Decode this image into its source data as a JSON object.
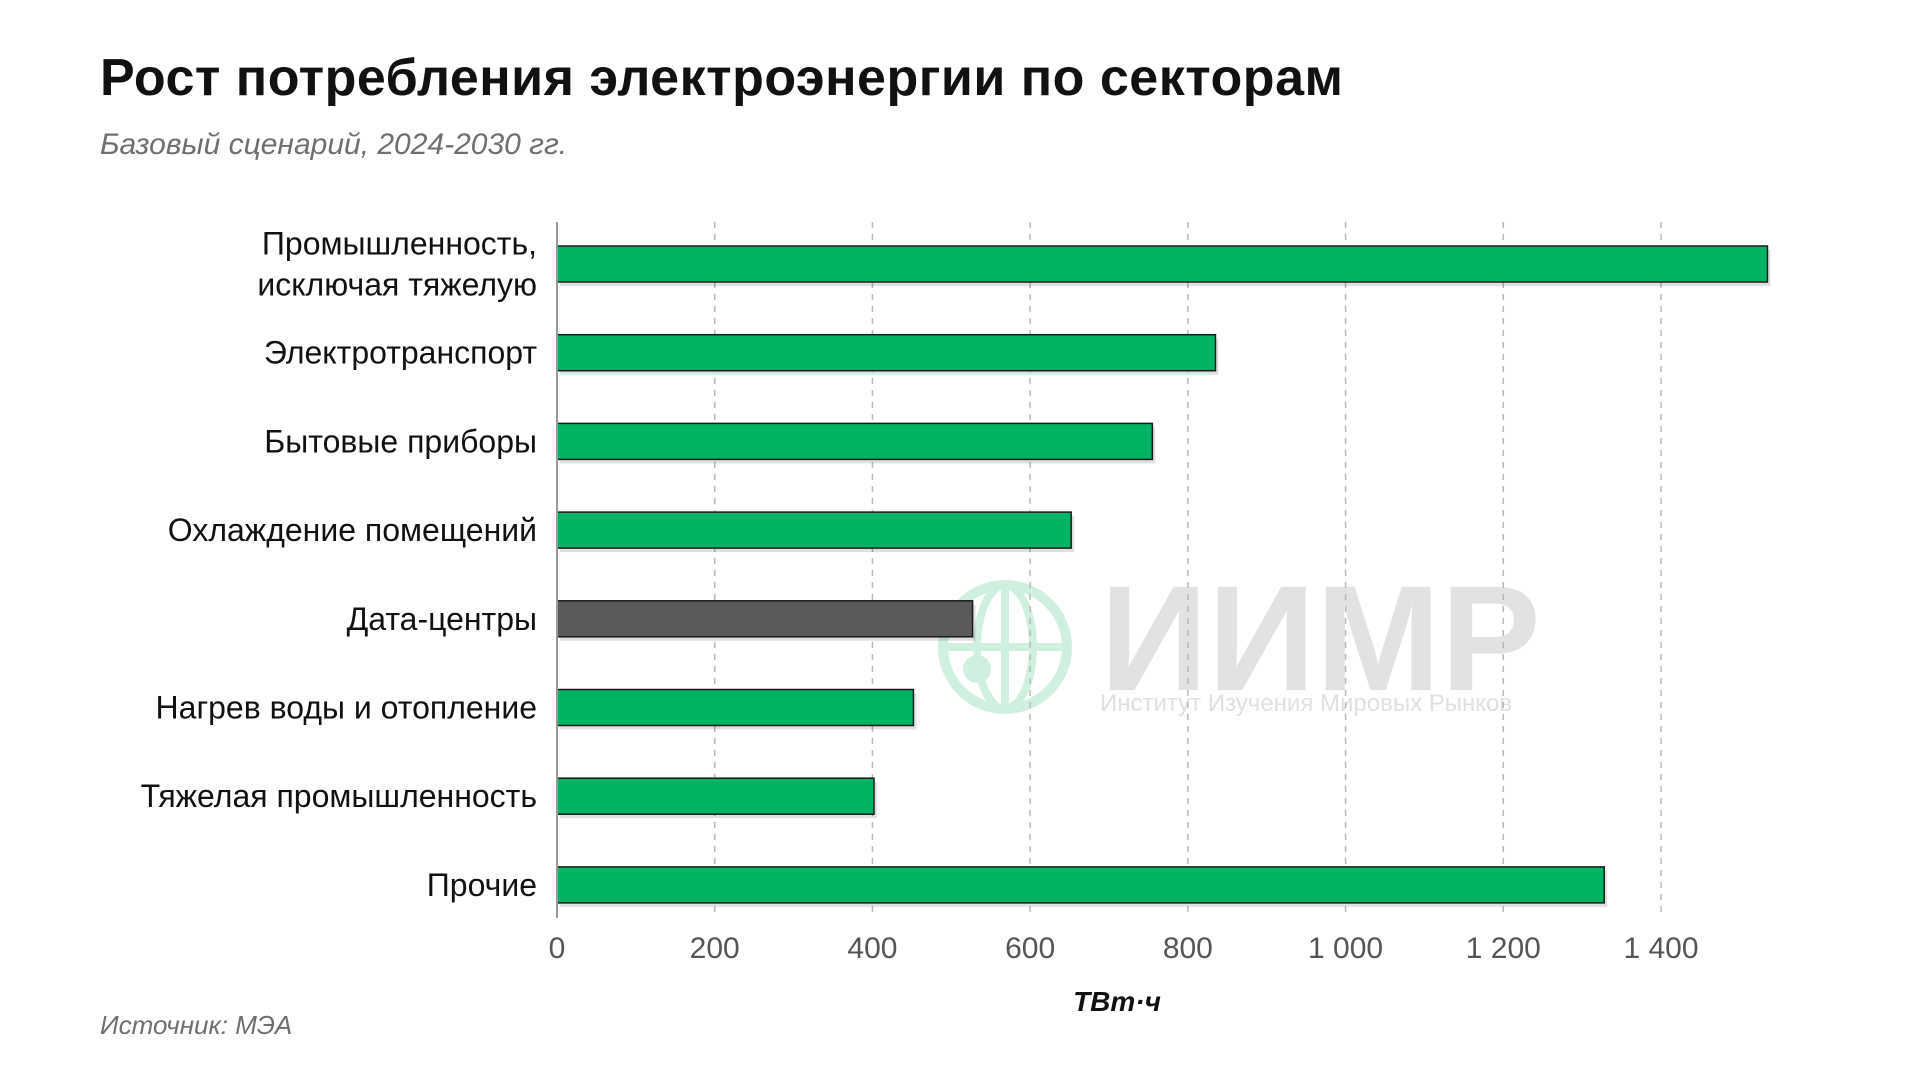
{
  "header": {
    "title": "Рост потребления электроэнергии по секторам",
    "subtitle": "Базовый сценарий, 2024-2030 гг."
  },
  "footer": {
    "source": "Источник: МЭА"
  },
  "watermark": {
    "name": "ИИМР",
    "tagline": "Институт Изучения Мировых Рынков"
  },
  "colors": {
    "bar": "#00b464",
    "highlight_bar": "#5a5a5a",
    "grid": "#b8b8b8",
    "axis": "#9a9a9a"
  },
  "chart_data": {
    "type": "bar",
    "orientation": "horizontal",
    "title": "Рост потребления электроэнергии по секторам",
    "subtitle": "Базовый сценарий, 2024-2030 гг.",
    "xlabel": "ТВт·ч",
    "ylabel": "",
    "xlim": [
      0,
      1560
    ],
    "xticks": [
      0,
      200,
      400,
      600,
      800,
      1000,
      1200,
      1400
    ],
    "xtick_labels": [
      "0",
      "200",
      "400",
      "600",
      "800",
      "1 000",
      "1 200",
      "1 400"
    ],
    "grid": "vertical, dashed",
    "categories": [
      [
        "Промышленность,",
        "исключая тяжелую"
      ],
      [
        "Электротранспорт"
      ],
      [
        "Бытовые приборы"
      ],
      [
        "Охлаждение помещений"
      ],
      [
        "Дата-центры"
      ],
      [
        "Нагрев воды и отопление"
      ],
      [
        "Тяжелая промышленность"
      ],
      [
        "Прочие"
      ]
    ],
    "values": [
      1535,
      835,
      755,
      652,
      527,
      452,
      402,
      1328
    ],
    "highlight_index": 4
  }
}
